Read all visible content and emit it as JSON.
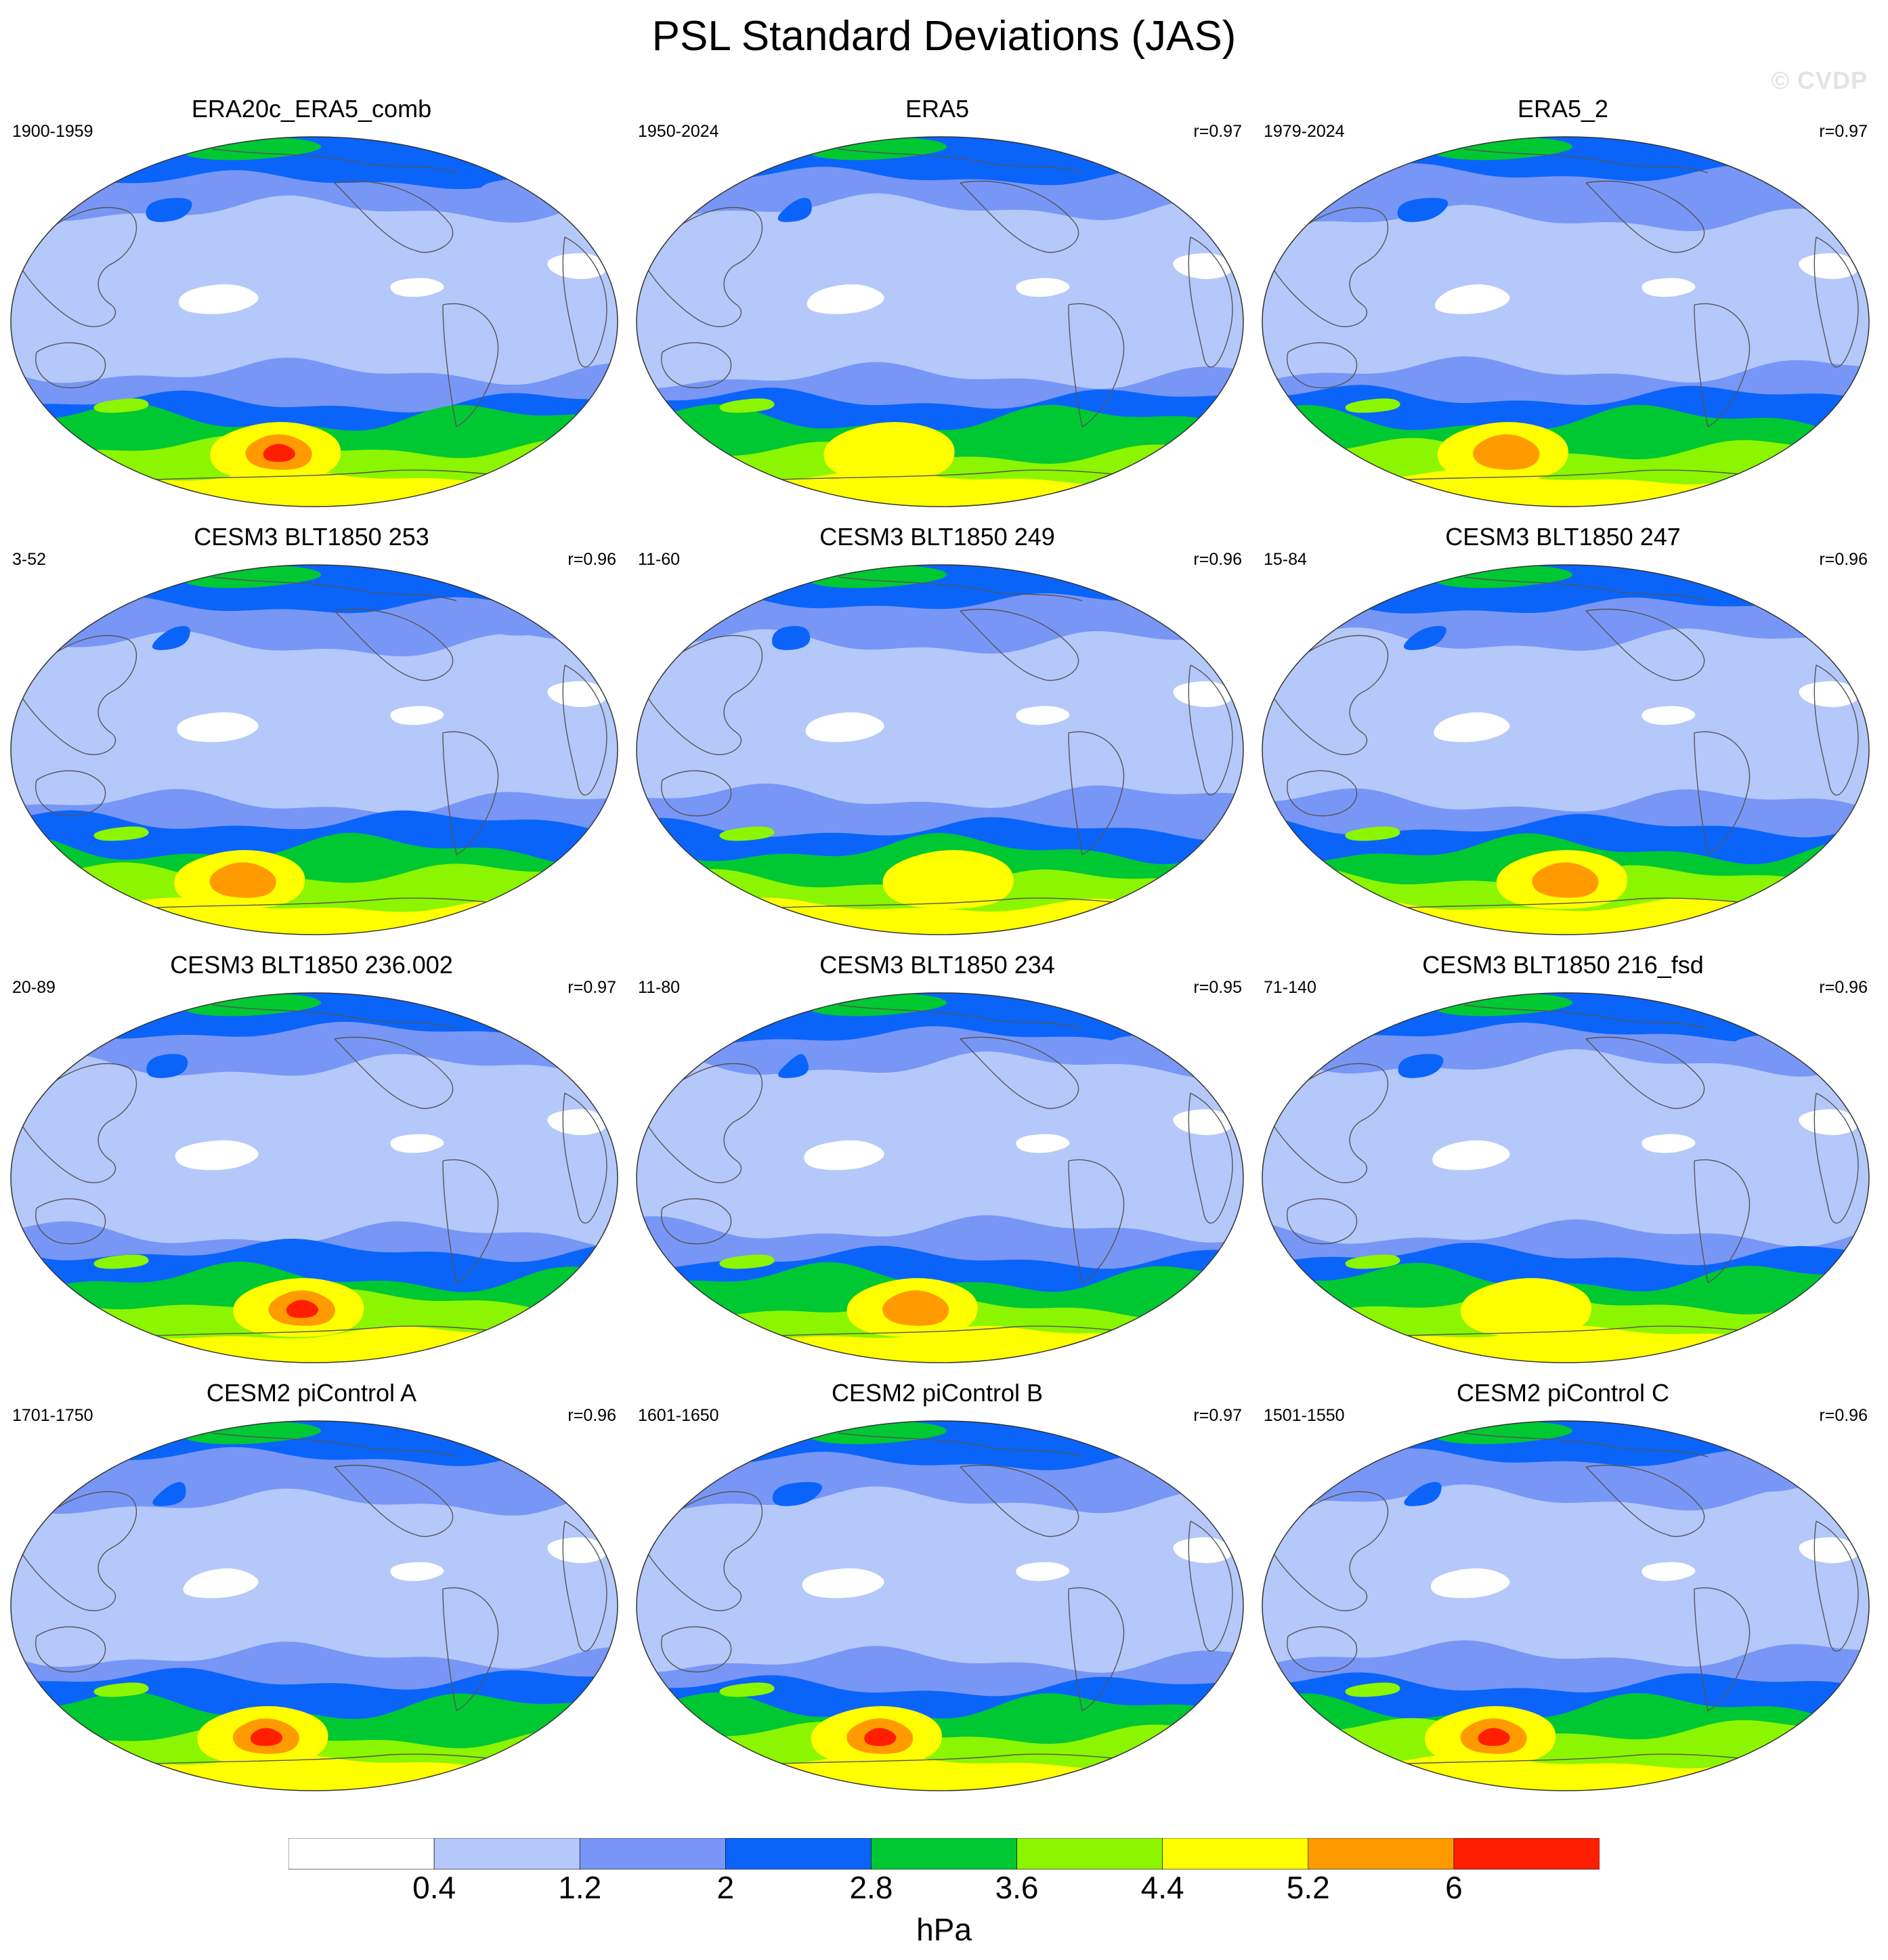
{
  "title": "PSL Standard Deviations (JAS)",
  "watermark": "© CVDP",
  "colors": {
    "bins": [
      "#ffffff",
      "#b4c8fa",
      "#7896f5",
      "#0a64fa",
      "#00c832",
      "#8cf500",
      "#ffff00",
      "#ff9b00",
      "#ff1e00"
    ],
    "coast": "#555555",
    "outline": "#333333"
  },
  "panels": [
    {
      "title": "ERA20c_ERA5_comb",
      "years": "1900-1959",
      "corr": "",
      "max_bin": 8
    },
    {
      "title": "ERA5",
      "years": "1950-2024",
      "corr": "r=0.97",
      "max_bin": 6
    },
    {
      "title": "ERA5_2",
      "years": "1979-2024",
      "corr": "r=0.97",
      "max_bin": 7
    },
    {
      "title": "CESM3 BLT1850 253",
      "years": "3-52",
      "corr": "r=0.96",
      "max_bin": 7
    },
    {
      "title": "CESM3 BLT1850 249",
      "years": "11-60",
      "corr": "r=0.96",
      "max_bin": 6
    },
    {
      "title": "CESM3 BLT1850 247",
      "years": "15-84",
      "corr": "r=0.96",
      "max_bin": 7
    },
    {
      "title": "CESM3 BLT1850 236.002",
      "years": "20-89",
      "corr": "r=0.97",
      "max_bin": 8
    },
    {
      "title": "CESM3 BLT1850 234",
      "years": "11-80",
      "corr": "r=0.95",
      "max_bin": 7
    },
    {
      "title": "CESM3 BLT1850 216_fsd",
      "years": "71-140",
      "corr": "r=0.96",
      "max_bin": 6
    },
    {
      "title": "CESM2 piControl A",
      "years": "1701-1750",
      "corr": "r=0.96",
      "max_bin": 8
    },
    {
      "title": "CESM2 piControl B",
      "years": "1601-1650",
      "corr": "r=0.97",
      "max_bin": 8
    },
    {
      "title": "CESM2 piControl C",
      "years": "1501-1550",
      "corr": "r=0.96",
      "max_bin": 8
    }
  ],
  "colorbar": {
    "labels": [
      "0.4",
      "1.2",
      "2",
      "2.8",
      "3.6",
      "4.4",
      "5.2",
      "6"
    ],
    "units": "hPa"
  }
}
